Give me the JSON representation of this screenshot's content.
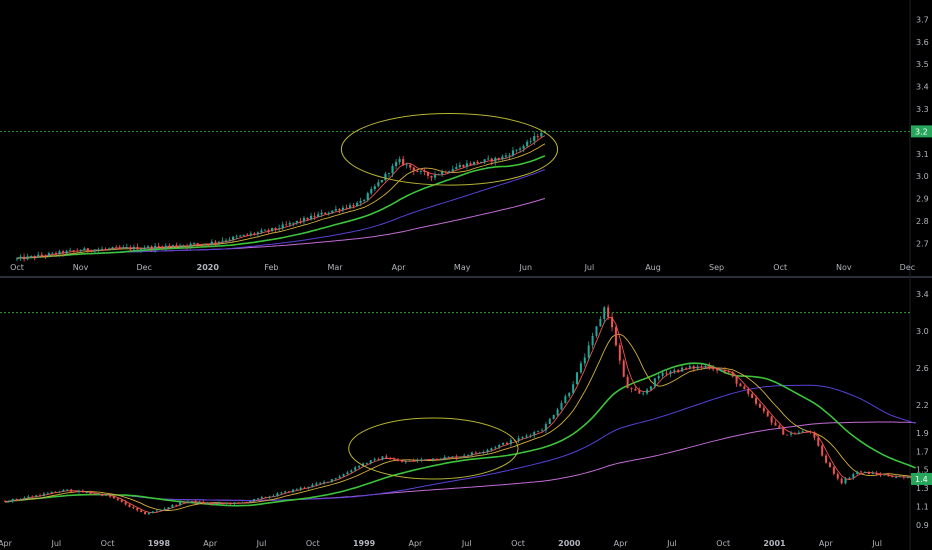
{
  "colors": {
    "background": "#000000",
    "up": "#26a69a",
    "down": "#ef5350",
    "ma_fast": "#ef5350",
    "ma_mid": "#d4b03a",
    "ma_slow": "#3cc43c",
    "ma_long": "#5b3fd6",
    "ma_longest": "#c36bd6",
    "highlight": "#b7b334",
    "hline": "#3cb43c",
    "price_tag": "#26a65b",
    "axis_text": "#b2b5be"
  },
  "chart_data": [
    {
      "type": "candlestick",
      "panel": "top",
      "x_tick_labels": [
        "Oct",
        "Nov",
        "Dec",
        "2020",
        "Feb",
        "Mar",
        "Apr",
        "May",
        "Jun",
        "Jul",
        "Aug",
        "Sep",
        "Oct",
        "Nov",
        "Dec"
      ],
      "y_tick_labels": [
        "2.7",
        "2.8",
        "2.9",
        "3.0",
        "3.1",
        "3.2",
        "3.3",
        "3.4",
        "3.5",
        "3.6",
        "3.7"
      ],
      "ylim": [
        2.63,
        3.76
      ],
      "x_range_months": [
        0,
        14.2
      ],
      "last_close": 3.2,
      "last_label": "3.2",
      "horizontal_line": 3.2,
      "highlight_ellipse": {
        "x_center_months": 6.8,
        "y_center": 3.12,
        "x_radius_months": 1.7,
        "y_radius": 0.16
      },
      "anchors": [
        [
          0,
          2.63
        ],
        [
          1,
          2.67
        ],
        [
          2,
          2.68
        ],
        [
          3,
          2.7
        ],
        [
          4,
          2.76
        ],
        [
          5,
          2.85
        ],
        [
          5.4,
          2.88
        ],
        [
          6,
          3.07
        ],
        [
          6.3,
          3.02
        ],
        [
          6.5,
          3.0
        ],
        [
          7,
          3.05
        ],
        [
          7.6,
          3.08
        ],
        [
          8,
          3.14
        ],
        [
          8.3,
          3.21
        ]
      ]
    },
    {
      "type": "candlestick",
      "panel": "bottom",
      "x_tick_labels": [
        "Apr",
        "Jul",
        "Oct",
        "1998",
        "Apr",
        "Jul",
        "Oct",
        "1999",
        "Apr",
        "Jul",
        "Oct",
        "2000",
        "Apr",
        "Jul",
        "Oct",
        "2001",
        "Apr",
        "Jul"
      ],
      "y_tick_labels": [
        "0.9",
        "1.1",
        "1.3",
        "1.5",
        "1.7",
        "1.9",
        "2.2",
        "2.6",
        "3.0",
        "3.4"
      ],
      "ylim": [
        0.88,
        3.5
      ],
      "x_range_quarters": [
        0,
        17.75
      ],
      "last_close": 1.4,
      "last_label": "1.4",
      "horizontal_line": 3.2,
      "highlight_ellipse": {
        "x_center_quarters": 8.35,
        "y_center": 1.73,
        "x_radius_quarters": 1.65,
        "y_radius": 0.33
      },
      "anchors": [
        [
          0,
          1.16
        ],
        [
          0.6,
          1.22
        ],
        [
          1.2,
          1.28
        ],
        [
          2,
          1.22
        ],
        [
          2.3,
          1.14
        ],
        [
          2.7,
          1.02
        ],
        [
          3,
          1.06
        ],
        [
          3.5,
          1.16
        ],
        [
          4,
          1.13
        ],
        [
          4.6,
          1.14
        ],
        [
          5.2,
          1.22
        ],
        [
          5.9,
          1.32
        ],
        [
          6.2,
          1.36
        ],
        [
          6.6,
          1.45
        ],
        [
          6.9,
          1.55
        ],
        [
          7.4,
          1.64
        ],
        [
          7.7,
          1.58
        ],
        [
          8.3,
          1.62
        ],
        [
          8.8,
          1.64
        ],
        [
          9.3,
          1.7
        ],
        [
          9.6,
          1.76
        ],
        [
          10,
          1.83
        ],
        [
          10.5,
          1.95
        ],
        [
          11,
          2.35
        ],
        [
          11.4,
          2.85
        ],
        [
          11.7,
          3.28
        ],
        [
          11.85,
          3.0
        ],
        [
          12.1,
          2.4
        ],
        [
          12.4,
          2.3
        ],
        [
          12.8,
          2.55
        ],
        [
          13.3,
          2.6
        ],
        [
          13.7,
          2.62
        ],
        [
          14.1,
          2.55
        ],
        [
          14.5,
          2.3
        ],
        [
          14.9,
          2.05
        ],
        [
          15.2,
          1.88
        ],
        [
          15.7,
          1.92
        ],
        [
          16,
          1.58
        ],
        [
          16.3,
          1.36
        ],
        [
          16.6,
          1.48
        ],
        [
          17,
          1.45
        ],
        [
          17.3,
          1.43
        ],
        [
          17.75,
          1.4
        ]
      ]
    }
  ]
}
